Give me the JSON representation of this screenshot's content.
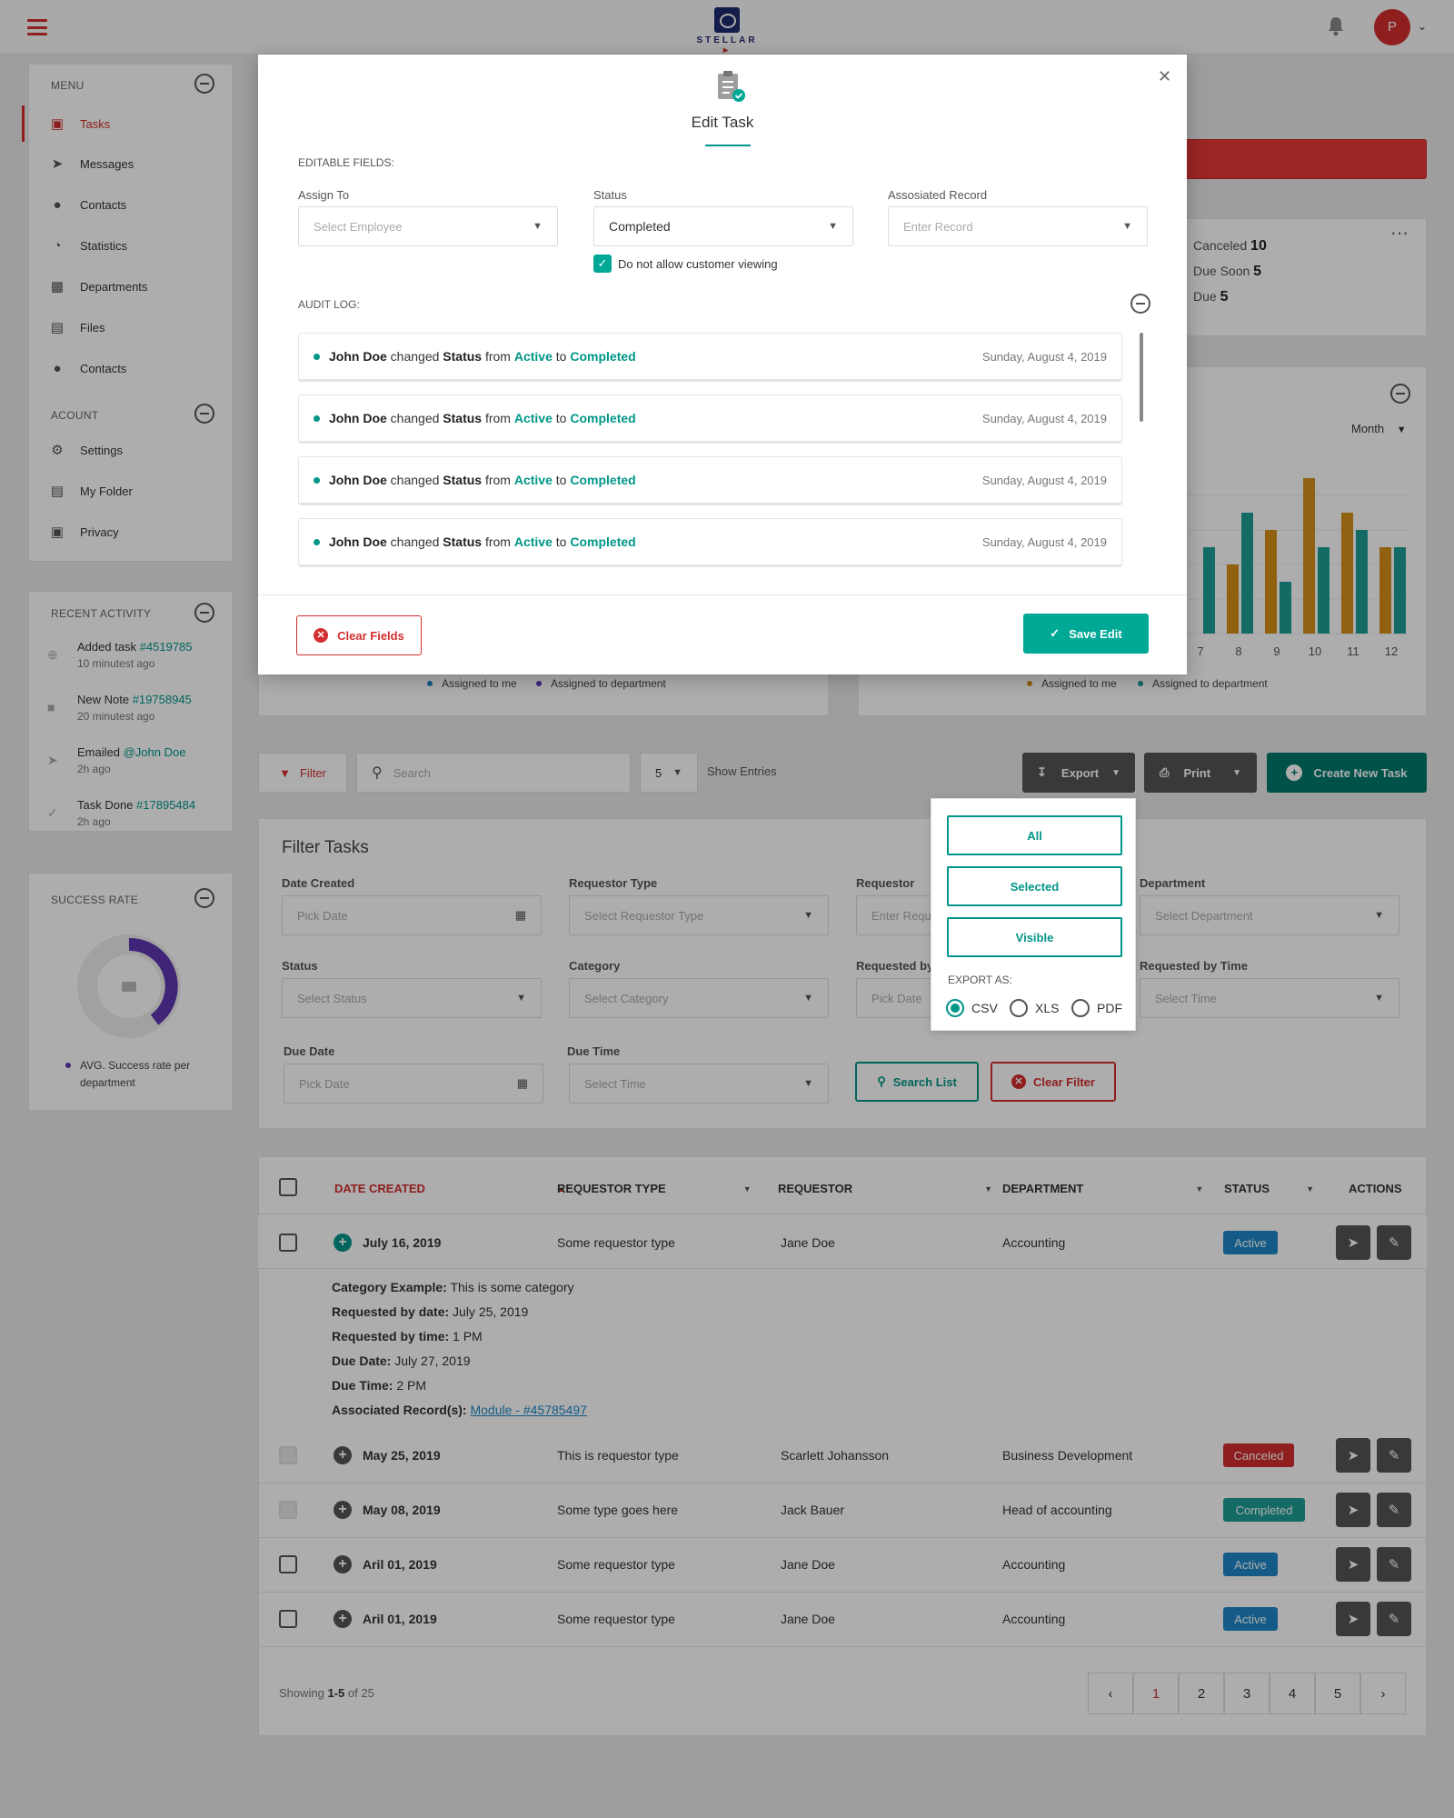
{
  "topbar": {
    "logo_text": "STELLAR",
    "avatar_initial": "P"
  },
  "sidebar": {
    "menu_title": "MENU",
    "menu_items": [
      {
        "label": "Tasks",
        "icon": "clipboard-icon",
        "active": true
      },
      {
        "label": "Messages",
        "icon": "send-icon"
      },
      {
        "label": "Contacts",
        "icon": "user-icon"
      },
      {
        "label": "Statistics",
        "icon": "pie-chart-icon"
      },
      {
        "label": "Departments",
        "icon": "briefcase-icon"
      },
      {
        "label": "Files",
        "icon": "folder-icon"
      },
      {
        "label": "Contacts",
        "icon": "user-icon"
      }
    ],
    "account_title": "ACOUNT",
    "account_items": [
      {
        "label": "Settings",
        "icon": "gears-icon"
      },
      {
        "label": "My Folder",
        "icon": "folder-icon"
      },
      {
        "label": "Privacy",
        "icon": "lock-icon"
      }
    ],
    "recent_title": "RECENT ACTIVITY",
    "recent": [
      {
        "text": "Added task",
        "ref": "#4519785",
        "time": "10 minutest ago"
      },
      {
        "text": "New Note",
        "ref": "#19758945",
        "time": "20 minutest ago"
      },
      {
        "text": "Emailed",
        "ref": "@John Doe",
        "time": "2h ago"
      },
      {
        "text": "Task Done",
        "ref": "#17895484",
        "time": "2h ago"
      }
    ],
    "success_title": "SUCCESS RATE",
    "success_legend": "AVG. Success rate per department"
  },
  "stats": {
    "canceled_label": "Canceled",
    "canceled": "10",
    "due_soon_label": "Due Soon",
    "due_soon": "5",
    "due_label": "Due",
    "due": "5"
  },
  "chart": {
    "period": "Month",
    "legend_left": [
      "Assigned to me",
      "Assigned to department"
    ],
    "legend_right": [
      "Assigned to me",
      "Assigned to department"
    ]
  },
  "chart_data": {
    "type": "bar",
    "categories": [
      "7",
      "8",
      "9",
      "10",
      "11",
      "12"
    ],
    "series": [
      {
        "name": "Assigned to me",
        "values": [
          null,
          4,
          6,
          9,
          7,
          5
        ]
      },
      {
        "name": "Assigned to department",
        "values": [
          5,
          7,
          3,
          5,
          6,
          5
        ]
      }
    ],
    "colors": [
      "#d4901a",
      "#1e9e96"
    ]
  },
  "toolbar": {
    "filter_label": "Filter",
    "search_placeholder": "Search",
    "entries_value": "5",
    "entries_label": "Show Entries",
    "export_label": "Export",
    "print_label": "Print",
    "create_label": "Create New Task"
  },
  "export_menu": {
    "buttons": [
      "All",
      "Selected",
      "Visible"
    ],
    "export_as": "EXPORT AS:",
    "formats": [
      "CSV",
      "XLS",
      "PDF"
    ],
    "selected_format": "CSV"
  },
  "filter_panel": {
    "title": "Filter Tasks",
    "date_created": {
      "label": "Date Created",
      "placeholder": "Pick Date"
    },
    "requestor_type": {
      "label": "Requestor Type",
      "placeholder": "Select Requestor Type"
    },
    "requestor": {
      "label": "Requestor",
      "placeholder": "Enter Requestor"
    },
    "department": {
      "label": "Department",
      "placeholder": "Select Department"
    },
    "status": {
      "label": "Status",
      "placeholder": "Select Status"
    },
    "category": {
      "label": "Category",
      "placeholder": "Select Category"
    },
    "requested_by_date": {
      "label": "Requested by Date",
      "placeholder": "Pick Date"
    },
    "requested_by_time": {
      "label": "Requested by Time",
      "placeholder": "Select Time"
    },
    "due_date": {
      "label": "Due Date",
      "placeholder": "Pick Date"
    },
    "due_time": {
      "label": "Due Time",
      "placeholder": "Select Time"
    },
    "search_btn": "Search List",
    "clear_btn": "Clear Filter"
  },
  "table": {
    "headers": [
      "DATE CREATED",
      "REQUESTOR TYPE",
      "REQUESTOR",
      "DEPARTMENT",
      "STATUS",
      "ACTIONS"
    ],
    "rows": [
      {
        "date": "July 16, 2019",
        "type": "Some requestor type",
        "requestor": "Jane Doe",
        "department": "Accounting",
        "status": "Active",
        "status_color": "#1e88c8"
      },
      {
        "date": "May 25, 2019",
        "type": "This is requestor type",
        "requestor": "Scarlett Johansson",
        "department": "Business Development",
        "status": "Canceled",
        "status_color": "#d32f2f"
      },
      {
        "date": "May 08, 2019",
        "type": "Some type goes here",
        "requestor": "Jack Bauer",
        "department": "Head of accounting",
        "status": "Completed",
        "status_color": "#1e9e96"
      },
      {
        "date": "Aril 01, 2019",
        "type": "Some requestor type",
        "requestor": "Jane Doe",
        "department": "Accounting",
        "status": "Active",
        "status_color": "#1e88c8"
      },
      {
        "date": "Aril 01, 2019",
        "type": "Some requestor type",
        "requestor": "Jane Doe",
        "department": "Accounting",
        "status": "Active",
        "status_color": "#1e88c8"
      }
    ],
    "detail": {
      "category_label": "Category Example:",
      "category": "This is some category",
      "req_date_label": "Requested by date:",
      "req_date": "July 25, 2019",
      "req_time_label": "Requested by time:",
      "req_time": "1 PM",
      "due_date_label": "Due Date:",
      "due_date": "July 27, 2019",
      "due_time_label": "Due Time:",
      "due_time": "2 PM",
      "assoc_label": "Associated Record(s):",
      "assoc": "Module - #45785497"
    },
    "showing_prefix": "Showing",
    "showing_range": "1-5",
    "showing_suffix": "of 25",
    "pages": [
      "1",
      "2",
      "3",
      "4",
      "5"
    ]
  },
  "modal": {
    "title": "Edit Task",
    "editable_title": "EDITABLE FIELDS:",
    "assign_label": "Assign To",
    "assign_placeholder": "Select Employee",
    "status_label": "Status",
    "status_value": "Completed",
    "record_label": "Assosiated Record",
    "record_placeholder": "Enter Record",
    "checkbox_label": "Do not allow customer viewing",
    "audit_title": "AUDIT LOG:",
    "audit": [
      {
        "who": "John Doe",
        "verb": "changed",
        "field": "Status",
        "from_word": "from",
        "from": "Active",
        "to_word": "to",
        "to": "Completed",
        "date": "Sunday, August 4, 2019"
      },
      {
        "who": "John Doe",
        "verb": "changed",
        "field": "Status",
        "from_word": "from",
        "from": "Active",
        "to_word": "to",
        "to": "Completed",
        "date": "Sunday, August 4, 2019"
      },
      {
        "who": "John Doe",
        "verb": "changed",
        "field": "Status",
        "from_word": "from",
        "from": "Active",
        "to_word": "to",
        "to": "Completed",
        "date": "Sunday, August 4, 2019"
      },
      {
        "who": "John Doe",
        "verb": "changed",
        "field": "Status",
        "from_word": "from",
        "from": "Active",
        "to_word": "to",
        "to": "Completed",
        "date": "Sunday, August 4, 2019"
      }
    ],
    "clear_label": "Clear Fields",
    "save_label": "Save Edit"
  }
}
